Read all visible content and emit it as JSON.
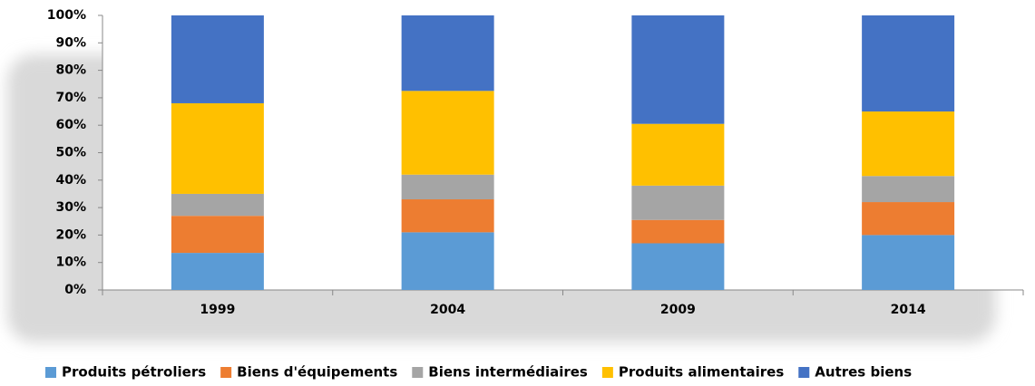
{
  "chart_data": {
    "type": "stacked_bar",
    "categories": [
      "1999",
      "2004",
      "2009",
      "2014"
    ],
    "series": [
      {
        "name": "Produits pétroliers",
        "color": "#5b9bd5",
        "values": [
          13.5,
          21,
          17,
          20
        ]
      },
      {
        "name": "Biens d'équipements",
        "color": "#ed7d31",
        "values": [
          13.5,
          12,
          8.5,
          12
        ]
      },
      {
        "name": "Biens intermédiaires",
        "color": "#a5a5a5",
        "values": [
          8,
          9,
          12.5,
          9.5
        ]
      },
      {
        "name": "Produits alimentaires",
        "color": "#ffc000",
        "values": [
          33,
          30.5,
          22.5,
          23.5
        ]
      },
      {
        "name": "Autres biens",
        "color": "#4472c4",
        "values": [
          32,
          27.5,
          39.5,
          35
        ]
      }
    ],
    "ylim": [
      0,
      100
    ],
    "yticks": [
      {
        "value": 0,
        "label": "0%"
      },
      {
        "value": 10,
        "label": "10%"
      },
      {
        "value": 20,
        "label": "20%"
      },
      {
        "value": 30,
        "label": "30%"
      },
      {
        "value": 40,
        "label": "40%"
      },
      {
        "value": 50,
        "label": "50%"
      },
      {
        "value": 60,
        "label": "60%"
      },
      {
        "value": 70,
        "label": "70%"
      },
      {
        "value": 80,
        "label": "80%"
      },
      {
        "value": 90,
        "label": "90%"
      },
      {
        "value": 100,
        "label": "100%"
      }
    ],
    "legend": "bottom"
  }
}
